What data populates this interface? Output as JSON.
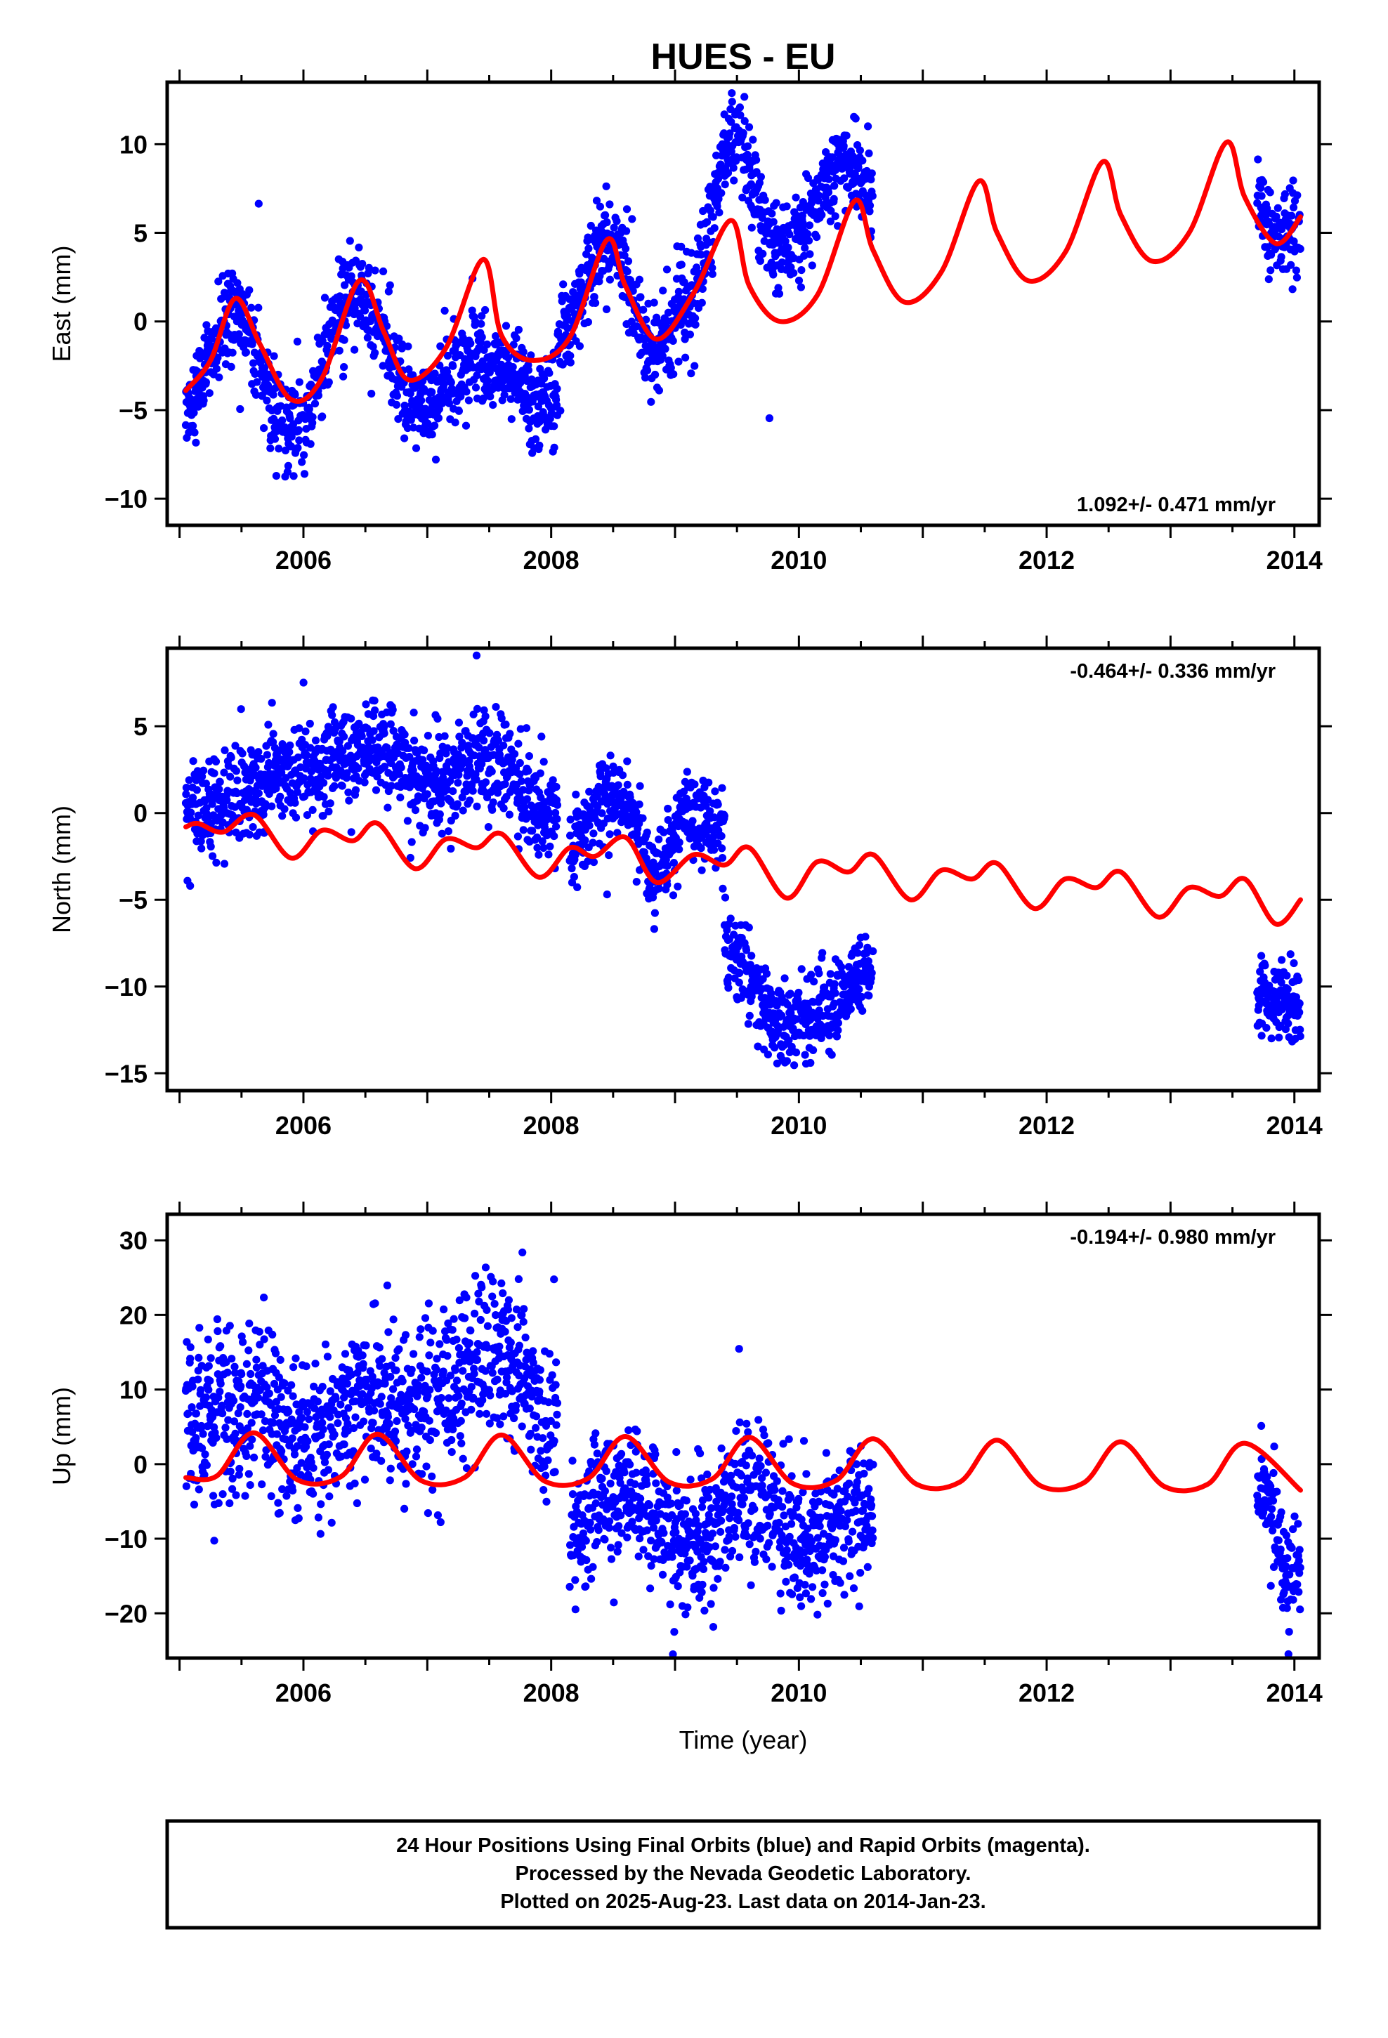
{
  "figure": {
    "title": "HUES - EU",
    "xlabel": "Time (year)",
    "caption": [
      "24 Hour Positions Using Final Orbits (blue) and Rapid Orbits (magenta).",
      "Processed by the Nevada Geodetic Laboratory.",
      "Plotted on 2025-Aug-23. Last data on 2014-Jan-23."
    ],
    "colors": {
      "data_points": "#0000ff",
      "model_curve": "#ff0000",
      "frame": "#000000"
    }
  },
  "chart_data": [
    {
      "type": "scatter",
      "component": "east",
      "ylabel": "East (mm)",
      "rate_label": "1.092+/- 0.471 mm/yr",
      "rate_label_position": "bottom-right",
      "xlim": [
        2004.9,
        2014.2
      ],
      "ylim": [
        -11.5,
        13.5
      ],
      "x_ticks": [
        2006,
        2008,
        2010,
        2012,
        2014
      ],
      "y_ticks": [
        -10,
        -5,
        0,
        5,
        10
      ],
      "grid": false,
      "series": [
        {
          "role": "observations",
          "segments": [
            {
              "t_start": 2005.05,
              "t_end": 2008.05,
              "mean_points": [
                [
                  2005.05,
                  -4.5
                ],
                [
                  2005.45,
                  0.5
                ],
                [
                  2005.9,
                  -6.0
                ],
                [
                  2006.45,
                  1.8
                ],
                [
                  2006.9,
                  -4.8
                ],
                [
                  2007.4,
                  -2.0
                ],
                [
                  2007.6,
                  -3.0
                ],
                [
                  2008.05,
                  -5.0
                ]
              ],
              "scatter": 1.3
            },
            {
              "t_start": 2008.05,
              "t_end": 2010.6,
              "mean_points": [
                [
                  2008.05,
                  -1.0
                ],
                [
                  2008.45,
                  4.5
                ],
                [
                  2008.85,
                  -1.5
                ],
                [
                  2009.1,
                  1.0
                ],
                [
                  2009.45,
                  10.0
                ],
                [
                  2009.85,
                  4.0
                ],
                [
                  2010.4,
                  9.0
                ],
                [
                  2010.6,
                  7.5
                ]
              ],
              "scatter": 1.3
            },
            {
              "t_start": 2013.7,
              "t_end": 2014.05,
              "mean_points": [
                [
                  2013.7,
                  7.0
                ],
                [
                  2013.85,
                  5.0
                ],
                [
                  2014.05,
                  5.0
                ]
              ],
              "scatter": 1.2
            }
          ]
        },
        {
          "role": "model",
          "points": [
            [
              2005.05,
              -3.9
            ],
            [
              2005.25,
              -2.2
            ],
            [
              2005.45,
              1.3
            ],
            [
              2005.65,
              -1.3
            ],
            [
              2005.9,
              -4.4
            ],
            [
              2006.15,
              -3.2
            ],
            [
              2006.45,
              2.3
            ],
            [
              2006.65,
              -0.6
            ],
            [
              2006.85,
              -3.3
            ],
            [
              2007.15,
              -1.5
            ],
            [
              2007.45,
              3.5
            ],
            [
              2007.6,
              -0.8
            ],
            [
              2007.85,
              -2.2
            ],
            [
              2008.15,
              -0.9
            ],
            [
              2008.45,
              4.6
            ],
            [
              2008.6,
              2.0
            ],
            [
              2008.85,
              -1.0
            ],
            [
              2009.15,
              1.6
            ],
            [
              2009.45,
              5.7
            ],
            [
              2009.6,
              2.0
            ],
            [
              2009.85,
              0.0
            ],
            [
              2010.15,
              1.5
            ],
            [
              2010.45,
              6.8
            ],
            [
              2010.6,
              4.0
            ],
            [
              2010.85,
              1.1
            ],
            [
              2011.15,
              2.8
            ],
            [
              2011.45,
              7.9
            ],
            [
              2011.6,
              5.0
            ],
            [
              2011.85,
              2.3
            ],
            [
              2012.15,
              3.9
            ],
            [
              2012.45,
              9.0
            ],
            [
              2012.6,
              6.0
            ],
            [
              2012.85,
              3.4
            ],
            [
              2013.15,
              5.0
            ],
            [
              2013.45,
              10.1
            ],
            [
              2013.6,
              7.0
            ],
            [
              2013.85,
              4.4
            ],
            [
              2014.05,
              5.9
            ]
          ]
        }
      ]
    },
    {
      "type": "scatter",
      "component": "north",
      "ylabel": "North (mm)",
      "rate_label": "-0.464+/- 0.336 mm/yr",
      "rate_label_position": "top-right",
      "xlim": [
        2004.9,
        2014.2
      ],
      "ylim": [
        -16,
        9.5
      ],
      "x_ticks": [
        2006,
        2008,
        2010,
        2012,
        2014
      ],
      "y_ticks": [
        -15,
        -10,
        -5,
        0,
        5
      ],
      "grid": false,
      "series": [
        {
          "role": "observations",
          "segments": [
            {
              "t_start": 2005.05,
              "t_end": 2008.05,
              "mean_points": [
                [
                  2005.05,
                  0.0
                ],
                [
                  2005.5,
                  1.0
                ],
                [
                  2006.0,
                  2.5
                ],
                [
                  2006.6,
                  4.0
                ],
                [
                  2007.0,
                  2.0
                ],
                [
                  2007.5,
                  3.0
                ],
                [
                  2008.05,
                  0.0
                ]
              ],
              "scatter": 1.4
            },
            {
              "t_start": 2008.15,
              "t_end": 2009.4,
              "mean_points": [
                [
                  2008.15,
                  -2.0
                ],
                [
                  2008.5,
                  1.0
                ],
                [
                  2008.9,
                  -3.5
                ],
                [
                  2009.1,
                  0.0
                ],
                [
                  2009.4,
                  -1.0
                ]
              ],
              "scatter": 1.2
            },
            {
              "t_start": 2009.4,
              "t_end": 2010.6,
              "mean_points": [
                [
                  2009.4,
                  -8.0
                ],
                [
                  2009.9,
                  -12.5
                ],
                [
                  2010.2,
                  -11.0
                ],
                [
                  2010.6,
                  -9.0
                ]
              ],
              "scatter": 1.2
            },
            {
              "t_start": 2013.7,
              "t_end": 2014.05,
              "mean_points": [
                [
                  2013.7,
                  -10.5
                ],
                [
                  2014.05,
                  -11.0
                ]
              ],
              "scatter": 1.2
            }
          ]
        },
        {
          "role": "model",
          "points": [
            [
              2005.05,
              -0.8
            ],
            [
              2005.15,
              -0.6
            ],
            [
              2005.35,
              -1.1
            ],
            [
              2005.6,
              -0.1
            ],
            [
              2005.9,
              -2.6
            ],
            [
              2006.15,
              -1.0
            ],
            [
              2006.4,
              -1.6
            ],
            [
              2006.6,
              -0.6
            ],
            [
              2006.9,
              -3.2
            ],
            [
              2007.15,
              -1.5
            ],
            [
              2007.4,
              -2.0
            ],
            [
              2007.6,
              -1.2
            ],
            [
              2007.9,
              -3.7
            ],
            [
              2008.15,
              -2.0
            ],
            [
              2008.35,
              -2.5
            ],
            [
              2008.6,
              -1.4
            ],
            [
              2008.85,
              -4.0
            ],
            [
              2009.15,
              -2.4
            ],
            [
              2009.4,
              -3.0
            ],
            [
              2009.6,
              -2.0
            ],
            [
              2009.9,
              -4.9
            ],
            [
              2010.15,
              -2.8
            ],
            [
              2010.4,
              -3.4
            ],
            [
              2010.6,
              -2.4
            ],
            [
              2010.9,
              -5.0
            ],
            [
              2011.15,
              -3.3
            ],
            [
              2011.4,
              -3.8
            ],
            [
              2011.6,
              -2.9
            ],
            [
              2011.9,
              -5.5
            ],
            [
              2012.15,
              -3.8
            ],
            [
              2012.4,
              -4.3
            ],
            [
              2012.6,
              -3.4
            ],
            [
              2012.9,
              -6.0
            ],
            [
              2013.15,
              -4.3
            ],
            [
              2013.4,
              -4.8
            ],
            [
              2013.6,
              -3.8
            ],
            [
              2013.85,
              -6.4
            ],
            [
              2014.05,
              -5.0
            ]
          ]
        }
      ]
    },
    {
      "type": "scatter",
      "component": "up",
      "ylabel": "Up (mm)",
      "rate_label": "-0.194+/- 0.980 mm/yr",
      "rate_label_position": "top-right",
      "xlim": [
        2004.9,
        2014.2
      ],
      "ylim": [
        -26,
        33.5
      ],
      "x_ticks": [
        2006,
        2008,
        2010,
        2012,
        2014
      ],
      "y_ticks": [
        -20,
        -10,
        0,
        10,
        20,
        30
      ],
      "grid": false,
      "series": [
        {
          "role": "observations",
          "segments": [
            {
              "t_start": 2005.05,
              "t_end": 2008.05,
              "mean_points": [
                [
                  2005.05,
                  5.0
                ],
                [
                  2005.6,
                  7.0
                ],
                [
                  2006.0,
                  3.0
                ],
                [
                  2006.6,
                  10.0
                ],
                [
                  2007.0,
                  8.0
                ],
                [
                  2007.5,
                  15.0
                ],
                [
                  2008.05,
                  5.0
                ]
              ],
              "scatter": 5.5
            },
            {
              "t_start": 2008.15,
              "t_end": 2010.6,
              "mean_points": [
                [
                  2008.15,
                  -8.0
                ],
                [
                  2008.6,
                  -3.0
                ],
                [
                  2009.1,
                  -10.0
                ],
                [
                  2009.6,
                  -4.0
                ],
                [
                  2010.1,
                  -10.0
                ],
                [
                  2010.6,
                  -6.0
                ]
              ],
              "scatter": 4.5
            },
            {
              "t_start": 2013.7,
              "t_end": 2014.05,
              "mean_points": [
                [
                  2013.7,
                  -4.0
                ],
                [
                  2014.05,
                  -16.0
                ]
              ],
              "scatter": 4.0
            }
          ]
        },
        {
          "role": "model",
          "points": [
            [
              2005.05,
              -1.8
            ],
            [
              2005.3,
              -1.6
            ],
            [
              2005.6,
              4.2
            ],
            [
              2005.95,
              -2.1
            ],
            [
              2006.3,
              -1.7
            ],
            [
              2006.6,
              4.0
            ],
            [
              2006.95,
              -2.2
            ],
            [
              2007.3,
              -1.8
            ],
            [
              2007.6,
              3.9
            ],
            [
              2007.95,
              -2.3
            ],
            [
              2008.3,
              -1.9
            ],
            [
              2008.6,
              3.7
            ],
            [
              2008.95,
              -2.4
            ],
            [
              2009.3,
              -2.0
            ],
            [
              2009.6,
              3.6
            ],
            [
              2009.95,
              -2.6
            ],
            [
              2010.3,
              -2.2
            ],
            [
              2010.6,
              3.4
            ],
            [
              2010.95,
              -2.7
            ],
            [
              2011.3,
              -2.4
            ],
            [
              2011.6,
              3.2
            ],
            [
              2011.95,
              -2.9
            ],
            [
              2012.3,
              -2.5
            ],
            [
              2012.6,
              3.0
            ],
            [
              2012.95,
              -3.0
            ],
            [
              2013.3,
              -2.7
            ],
            [
              2013.6,
              2.8
            ],
            [
              2014.05,
              -3.5
            ]
          ]
        }
      ]
    }
  ]
}
